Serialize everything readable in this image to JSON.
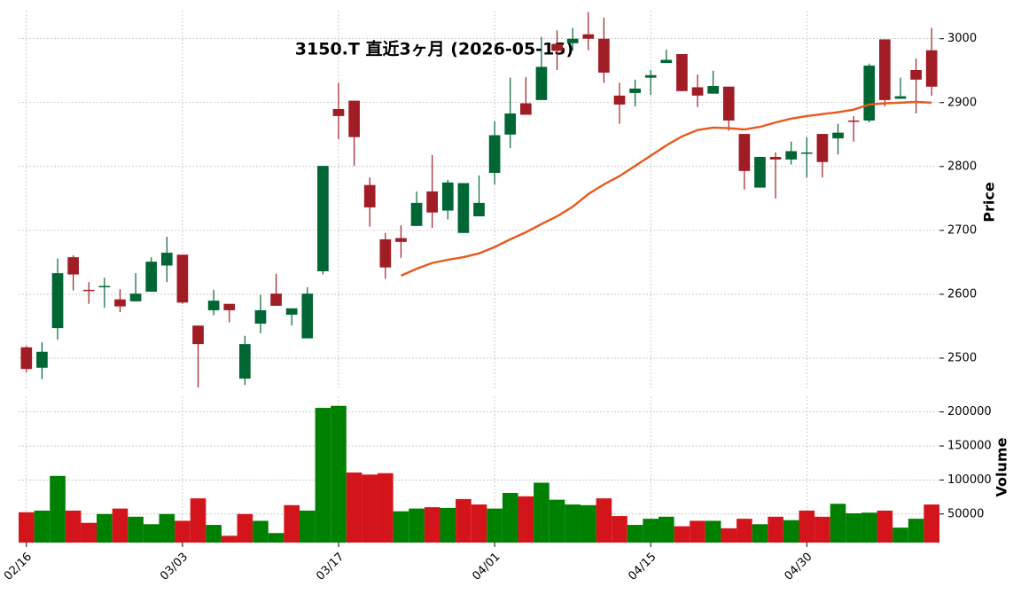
{
  "chart_data": {
    "type": "candlestick",
    "title": "3150.T  直近3ヶ月 (2026-05-15)",
    "categories": [
      "02/16",
      null,
      null,
      null,
      null,
      null,
      null,
      null,
      null,
      null,
      "03/03",
      null,
      null,
      null,
      null,
      null,
      null,
      null,
      null,
      null,
      "03/17",
      null,
      null,
      null,
      null,
      null,
      null,
      null,
      null,
      null,
      "04/01",
      null,
      null,
      null,
      null,
      null,
      null,
      null,
      null,
      null,
      "04/15",
      null,
      null,
      null,
      null,
      null,
      null,
      null,
      null,
      null,
      "04/30",
      null,
      null,
      null,
      null,
      null,
      null,
      null,
      null
    ],
    "open": [
      2517,
      2485,
      2547,
      2658,
      2607,
      2611,
      2592,
      2589,
      2604,
      2645,
      2662,
      2551,
      2575,
      2585,
      2468,
      2554,
      2601,
      2568,
      2531,
      2636,
      2890,
      2903,
      2771,
      2686,
      2688,
      2707,
      2761,
      2731,
      2696,
      2722,
      2790,
      2850,
      2899,
      2904,
      2992,
      2993,
      3007,
      3000,
      2911,
      2915,
      2939,
      2962,
      2976,
      2924,
      2914,
      2925,
      2851,
      2767,
      2815,
      2811,
      2821,
      2851,
      2844,
      2872,
      2872,
      2999,
      2906,
      2951,
      2982
    ],
    "high": [
      2519,
      2525,
      2656,
      2661,
      2619,
      2626,
      2608,
      2633,
      2658,
      2690,
      2662,
      2551,
      2607,
      2585,
      2535,
      2599,
      2632,
      2578,
      2611,
      2801,
      2931,
      2903,
      2783,
      2696,
      2708,
      2761,
      2818,
      2779,
      2774,
      2786,
      2871,
      2939,
      2940,
      3003,
      3013,
      3017,
      3042,
      3033,
      2931,
      2936,
      2951,
      2983,
      2976,
      2944,
      2950,
      2925,
      2851,
      2815,
      2822,
      2839,
      2846,
      2851,
      2867,
      2879,
      2961,
      2999,
      2939,
      2969,
      3017
    ],
    "low": [
      2478,
      2467,
      2529,
      2606,
      2585,
      2579,
      2572,
      2589,
      2604,
      2619,
      2585,
      2454,
      2567,
      2556,
      2458,
      2539,
      2582,
      2551,
      2531,
      2631,
      2843,
      2801,
      2706,
      2624,
      2657,
      2707,
      2704,
      2717,
      2696,
      2722,
      2772,
      2829,
      2881,
      2904,
      2951,
      2982,
      2982,
      2931,
      2867,
      2894,
      2912,
      2962,
      2918,
      2893,
      2914,
      2856,
      2764,
      2767,
      2750,
      2803,
      2783,
      2783,
      2819,
      2839,
      2869,
      2894,
      2906,
      2883,
      2911
    ],
    "close": [
      2483,
      2510,
      2633,
      2631,
      2605,
      2613,
      2581,
      2601,
      2651,
      2665,
      2587,
      2522,
      2590,
      2575,
      2522,
      2575,
      2582,
      2578,
      2601,
      2801,
      2879,
      2846,
      2736,
      2642,
      2682,
      2743,
      2728,
      2775,
      2774,
      2743,
      2849,
      2883,
      2881,
      2956,
      2981,
      3000,
      3000,
      2947,
      2897,
      2922,
      2943,
      2967,
      2918,
      2911,
      2926,
      2872,
      2793,
      2815,
      2811,
      2824,
      2822,
      2807,
      2853,
      2871,
      2958,
      2904,
      2910,
      2936,
      2925
    ],
    "up_color": "#006633",
    "down_color": "#a11d25",
    "ylim": [
      2450,
      3044
    ],
    "yticks": [
      2500,
      2600,
      2700,
      2800,
      2900,
      3000
    ],
    "ylabel": "Price",
    "grid": true,
    "ma": {
      "color": "#e8591c",
      "values": [
        null,
        null,
        null,
        null,
        null,
        null,
        null,
        null,
        null,
        null,
        null,
        null,
        null,
        null,
        null,
        null,
        null,
        null,
        null,
        null,
        null,
        null,
        null,
        null,
        2629,
        2640,
        2649,
        2654,
        2658,
        2664,
        2674,
        2686,
        2697,
        2710,
        2722,
        2737,
        2757,
        2772,
        2785,
        2801,
        2817,
        2833,
        2847,
        2857,
        2861,
        2860,
        2858,
        2862,
        2869,
        2875,
        2879,
        2882,
        2885,
        2889,
        2897,
        2899,
        2900,
        2901,
        2900
      ]
    },
    "volume": {
      "ylabel": "Volume",
      "ylim": [
        8000,
        223000
      ],
      "yticks": [
        50000,
        100000,
        150000,
        200000
      ],
      "values": [
        52600,
        55000,
        106000,
        55000,
        37000,
        50000,
        58000,
        46000,
        35000,
        50000,
        40000,
        73000,
        34000,
        18000,
        50000,
        40000,
        22000,
        63000,
        55000,
        206000,
        209000,
        111000,
        108000,
        110000,
        54000,
        58000,
        60000,
        59000,
        72000,
        64000,
        58000,
        81000,
        76000,
        96000,
        71000,
        64000,
        63000,
        73000,
        47000,
        34000,
        43000,
        46000,
        32000,
        40000,
        40000,
        29000,
        43000,
        35000,
        46000,
        41000,
        55000,
        46000,
        65000,
        51000,
        52000,
        55000,
        30000,
        43000,
        64000
      ],
      "colors": [
        "#d4141b",
        "#008000",
        "#008000",
        "#d4141b",
        "#d4141b",
        "#008000",
        "#d4141b",
        "#008000",
        "#008000",
        "#008000",
        "#d4141b",
        "#d4141b",
        "#008000",
        "#d4141b",
        "#d4141b",
        "#008000",
        "#008000",
        "#d4141b",
        "#008000",
        "#008000",
        "#008000",
        "#d4141b",
        "#d4141b",
        "#d4141b",
        "#008000",
        "#008000",
        "#d4141b",
        "#008000",
        "#d4141b",
        "#d4141b",
        "#008000",
        "#008000",
        "#d4141b",
        "#008000",
        "#008000",
        "#008000",
        "#008000",
        "#d4141b",
        "#d4141b",
        "#008000",
        "#008000",
        "#008000",
        "#d4141b",
        "#d4141b",
        "#008000",
        "#d4141b",
        "#d4141b",
        "#008000",
        "#d4141b",
        "#008000",
        "#d4141b",
        "#d4141b",
        "#008000",
        "#008000",
        "#008000",
        "#d4141b",
        "#008000",
        "#008000",
        "#d4141b"
      ]
    }
  }
}
